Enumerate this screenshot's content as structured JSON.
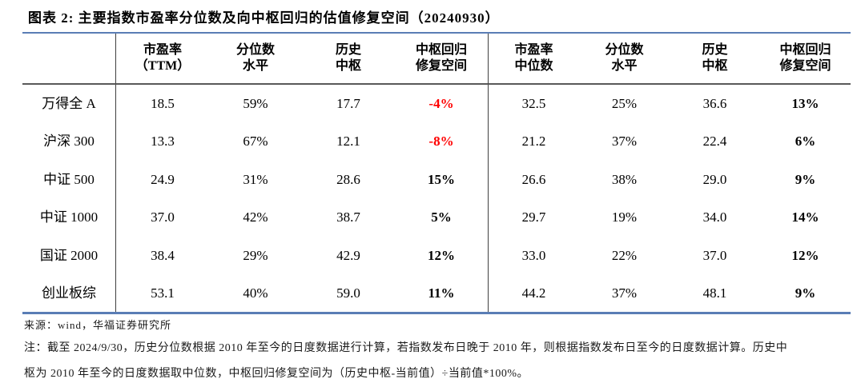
{
  "title": "图表 2:  主要指数市盈率分位数及向中枢回归的估值修复空间（20240930）",
  "table": {
    "headers": [
      {
        "line1": "市盈率",
        "line2": "（TTM）"
      },
      {
        "line1": "分位数",
        "line2": "水平"
      },
      {
        "line1": "历史",
        "line2": "中枢"
      },
      {
        "line1": "中枢回归",
        "line2": "修复空间"
      },
      {
        "line1": "市盈率",
        "line2": "中位数"
      },
      {
        "line1": "分位数",
        "line2": "水平"
      },
      {
        "line1": "历史",
        "line2": "中枢"
      },
      {
        "line1": "中枢回归",
        "line2": "修复空间"
      }
    ],
    "rows": [
      {
        "label": "万得全 A",
        "values": [
          "18.5",
          "59%",
          "17.7",
          "-4%",
          "32.5",
          "25%",
          "36.6",
          "13%"
        ]
      },
      {
        "label": "沪深 300",
        "values": [
          "13.3",
          "67%",
          "12.1",
          "-8%",
          "21.2",
          "37%",
          "22.4",
          "6%"
        ]
      },
      {
        "label": "中证 500",
        "values": [
          "24.9",
          "31%",
          "28.6",
          "15%",
          "26.6",
          "38%",
          "29.0",
          "9%"
        ]
      },
      {
        "label": "中证 1000",
        "values": [
          "37.0",
          "42%",
          "38.7",
          "5%",
          "29.7",
          "19%",
          "34.0",
          "14%"
        ]
      },
      {
        "label": "国证 2000",
        "values": [
          "38.4",
          "29%",
          "42.9",
          "12%",
          "33.0",
          "22%",
          "37.0",
          "12%"
        ]
      },
      {
        "label": "创业板综",
        "values": [
          "53.1",
          "40%",
          "59.0",
          "11%",
          "44.2",
          "37%",
          "48.1",
          "9%"
        ]
      }
    ]
  },
  "footer": {
    "source": "来源：wind，华福证券研究所",
    "note_line1": "注：截至 2024/9/30，历史分位数根据 2010 年至今的日度数据进行计算，若指数发布日晚于 2010 年，则根据指数发布日至今的日度数据计算。历史中",
    "note_line2": "枢为 2010 年至今的日度数据取中位数，中枢回归修复空间为（历史中枢-当前值）÷当前值*100%。"
  },
  "colors": {
    "accent_border": "#5a7db5",
    "negative_value": "#ff0000",
    "header_rule": "#595959"
  }
}
